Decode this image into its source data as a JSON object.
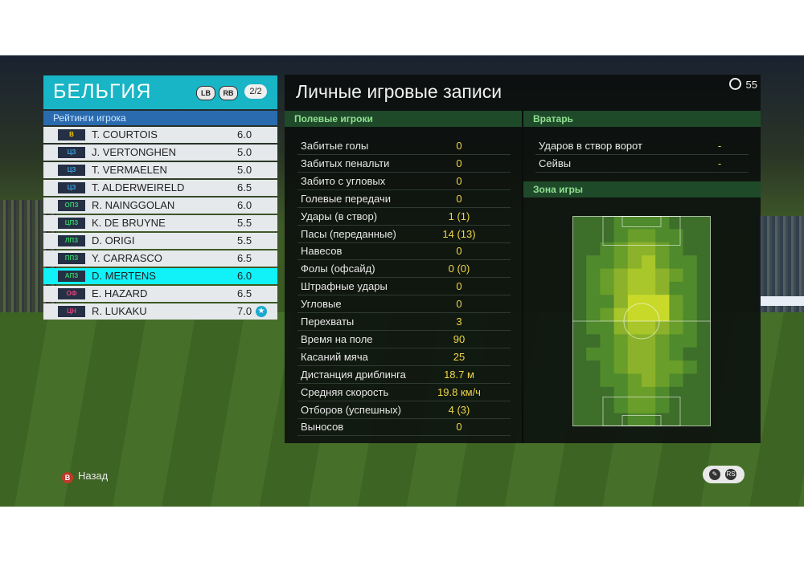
{
  "team": {
    "name": "БЕЛЬГИЯ",
    "lb": "LB",
    "rb": "RB",
    "page": "2/2"
  },
  "ratings_title": "Рейтинги игрока",
  "players": [
    {
      "pos": "В",
      "pos_color": "#f2c500",
      "name": "T. COURTOIS",
      "rating": "6.0"
    },
    {
      "pos": "ЦЗ",
      "pos_color": "#3aa0e0",
      "name": "J. VERTONGHEN",
      "rating": "5.0"
    },
    {
      "pos": "ЦЗ",
      "pos_color": "#3aa0e0",
      "name": "T. VERMAELEN",
      "rating": "5.0"
    },
    {
      "pos": "ЦЗ",
      "pos_color": "#3aa0e0",
      "name": "T. ALDERWEIRELD",
      "rating": "6.5"
    },
    {
      "pos": "ОПЗ",
      "pos_color": "#35c76a",
      "name": "R. NAINGGOLAN",
      "rating": "6.0"
    },
    {
      "pos": "ЦПЗ",
      "pos_color": "#35c76a",
      "name": "K. DE BRUYNE",
      "rating": "5.5"
    },
    {
      "pos": "ЛПЗ",
      "pos_color": "#35c76a",
      "name": "D. ORIGI",
      "rating": "5.5"
    },
    {
      "pos": "ППЗ",
      "pos_color": "#35c76a",
      "name": "Y. CARRASCO",
      "rating": "6.5"
    },
    {
      "pos": "АПЗ",
      "pos_color": "#35c76a",
      "name": "D. MERTENS",
      "rating": "6.0",
      "selected": true
    },
    {
      "pos": "ОФ",
      "pos_color": "#e0407a",
      "name": "E. HAZARD",
      "rating": "6.5"
    },
    {
      "pos": "ЦН",
      "pos_color": "#e0407a",
      "name": "R. LUKAKU",
      "rating": "7.0",
      "star": true
    }
  ],
  "panel": {
    "title": "Личные игровые записи",
    "timer": "55",
    "field_header": "Полевые игроки",
    "gk_header": "Вратарь",
    "zone_header": "Зона игры"
  },
  "field_stats": [
    {
      "label": "Забитые голы",
      "value": "0"
    },
    {
      "label": "Забитых пенальти",
      "value": "0"
    },
    {
      "label": "Забито с угловых",
      "value": "0"
    },
    {
      "label": "Голевые передачи",
      "value": "0"
    },
    {
      "label": "Удары (в створ)",
      "value": "1 (1)"
    },
    {
      "label": "Пасы (переданные)",
      "value": "14 (13)"
    },
    {
      "label": "Навесов",
      "value": "0"
    },
    {
      "label": "Фолы (офсайд)",
      "value": "0 (0)"
    },
    {
      "label": "Штрафные удары",
      "value": "0"
    },
    {
      "label": "Угловые",
      "value": "0"
    },
    {
      "label": "Перехваты",
      "value": "3"
    },
    {
      "label": "Время на поле",
      "value": "90"
    },
    {
      "label": "Касаний мяча",
      "value": "25"
    },
    {
      "label": "Дистанция дриблинга",
      "value": "18.7 м"
    },
    {
      "label": "Средняя скорость",
      "value": "19.8 км/ч"
    },
    {
      "label": "Отборов (успешных)",
      "value": "4 (3)"
    },
    {
      "label": "Выносов",
      "value": "0"
    }
  ],
  "gk_stats": [
    {
      "label": "Ударов в створ ворот",
      "value": "-"
    },
    {
      "label": "Сейвы",
      "value": "-"
    }
  ],
  "heatmap": {
    "cols": 10,
    "rows": 16,
    "grid": [
      [
        0,
        0,
        0,
        1,
        1,
        1,
        1,
        0,
        0,
        0
      ],
      [
        0,
        0,
        0,
        1,
        2,
        2,
        1,
        1,
        0,
        0
      ],
      [
        0,
        0,
        1,
        2,
        3,
        3,
        2,
        1,
        0,
        0
      ],
      [
        0,
        1,
        1,
        2,
        3,
        4,
        2,
        1,
        1,
        0
      ],
      [
        0,
        1,
        2,
        3,
        4,
        4,
        3,
        2,
        1,
        0
      ],
      [
        0,
        1,
        2,
        3,
        4,
        4,
        3,
        1,
        1,
        0
      ],
      [
        0,
        1,
        1,
        3,
        5,
        5,
        5,
        2,
        1,
        0
      ],
      [
        0,
        1,
        2,
        4,
        5,
        5,
        5,
        2,
        1,
        0
      ],
      [
        0,
        1,
        1,
        3,
        4,
        4,
        3,
        2,
        1,
        0
      ],
      [
        0,
        0,
        1,
        2,
        3,
        3,
        2,
        1,
        1,
        0
      ],
      [
        0,
        1,
        1,
        2,
        3,
        3,
        2,
        1,
        0,
        0
      ],
      [
        0,
        0,
        1,
        2,
        3,
        3,
        2,
        2,
        1,
        0
      ],
      [
        0,
        0,
        1,
        1,
        2,
        3,
        2,
        1,
        0,
        0
      ],
      [
        0,
        0,
        0,
        1,
        2,
        2,
        1,
        0,
        0,
        0
      ],
      [
        0,
        0,
        0,
        1,
        2,
        2,
        1,
        0,
        0,
        0
      ],
      [
        0,
        0,
        0,
        0,
        1,
        1,
        0,
        0,
        0,
        0
      ]
    ]
  },
  "footer": {
    "back_label": "Назад",
    "b_button": "B",
    "rs_label": "RS"
  }
}
